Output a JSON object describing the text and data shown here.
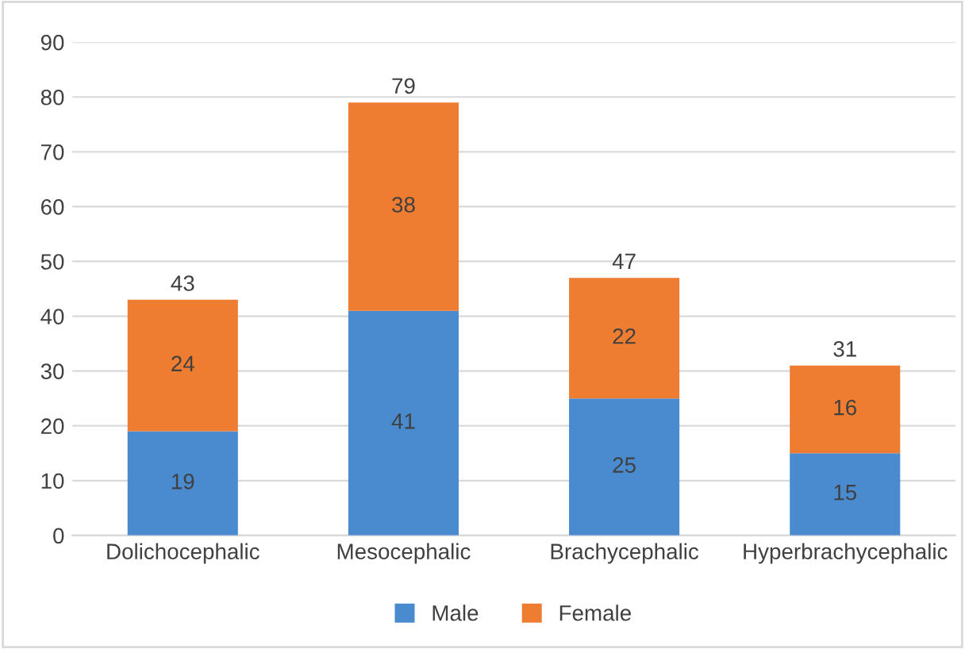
{
  "chart_data": {
    "type": "bar",
    "stacked": true,
    "categories": [
      "Dolichocephalic",
      "Mesocephalic",
      "Brachycephalic",
      "Hyperbrachycephalic"
    ],
    "series": [
      {
        "name": "Male",
        "color": "#4a8bd0",
        "values": [
          19,
          41,
          25,
          15
        ]
      },
      {
        "name": "Female",
        "color": "#ee7d31",
        "values": [
          24,
          38,
          22,
          16
        ]
      }
    ],
    "totals": [
      "43",
      "79",
      "47",
      "31"
    ],
    "data_labels": true,
    "ylim": [
      0,
      90
    ],
    "yticks": [
      0,
      10,
      20,
      30,
      40,
      50,
      60,
      70,
      80,
      90
    ],
    "grid": "y",
    "legend": "bottom"
  }
}
